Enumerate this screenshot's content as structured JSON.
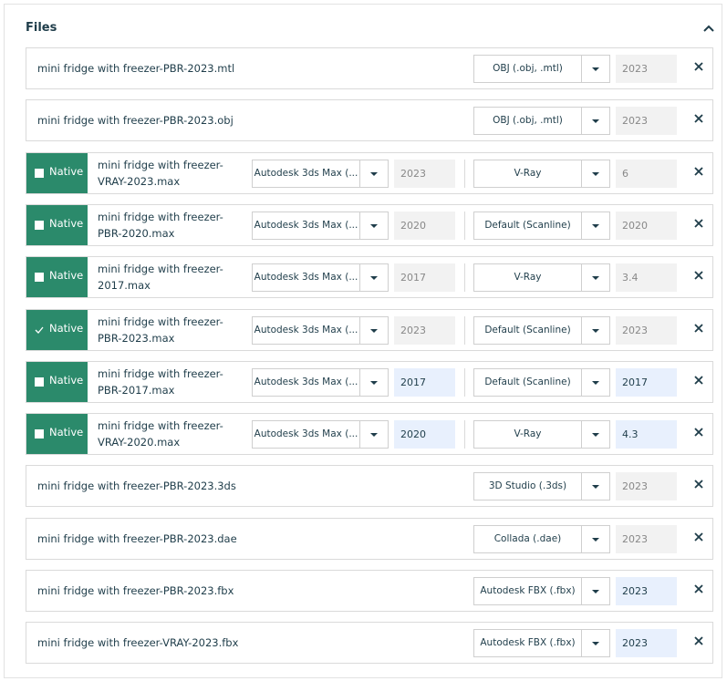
{
  "header": {
    "title": "Files"
  },
  "files": [
    {
      "name": "mini fridge with freezer-PBR-2023.mtl",
      "format": "OBJ (.obj, .mtl)",
      "version": "2023",
      "version_editable": false
    },
    {
      "name": "mini fridge with freezer-PBR-2023.obj",
      "format": "OBJ (.obj, .mtl)",
      "version": "2023",
      "version_editable": false
    },
    {
      "native": {
        "label": "Native",
        "checked": false
      },
      "name": "mini fridge with freezer-VRAY-2023.max",
      "software": "Autodesk 3ds Max (...",
      "software_version": "2023",
      "renderer": "V-Ray",
      "renderer_version": "6",
      "version_editable": false
    },
    {
      "native": {
        "label": "Native",
        "checked": false
      },
      "name": "mini fridge with freezer-PBR-2020.max",
      "software": "Autodesk 3ds Max (...",
      "software_version": "2020",
      "renderer": "Default (Scanline)",
      "renderer_version": "2020",
      "version_editable": false
    },
    {
      "native": {
        "label": "Native",
        "checked": false
      },
      "name": "mini fridge with freezer-2017.max",
      "software": "Autodesk 3ds Max (...",
      "software_version": "2017",
      "renderer": "V-Ray",
      "renderer_version": "3.4",
      "version_editable": false
    },
    {
      "native": {
        "label": "Native",
        "checked": true
      },
      "name": "mini fridge with freezer-PBR-2023.max",
      "software": "Autodesk 3ds Max (...",
      "software_version": "2023",
      "renderer": "Default (Scanline)",
      "renderer_version": "2023",
      "version_editable": false
    },
    {
      "native": {
        "label": "Native",
        "checked": false
      },
      "name": "mini fridge with freezer-PBR-2017.max",
      "software": "Autodesk 3ds Max (...",
      "software_version": "2017",
      "renderer": "Default (Scanline)",
      "renderer_version": "2017",
      "version_editable": true
    },
    {
      "native": {
        "label": "Native",
        "checked": false
      },
      "name": "mini fridge with freezer-VRAY-2020.max",
      "software": "Autodesk 3ds Max (...",
      "software_version": "2020",
      "renderer": "V-Ray",
      "renderer_version": "4.3",
      "version_editable": true
    },
    {
      "name": "mini fridge with freezer-PBR-2023.3ds",
      "format": "3D Studio (.3ds)",
      "version": "2023",
      "version_editable": false
    },
    {
      "name": "mini fridge with freezer-PBR-2023.dae",
      "format": "Collada (.dae)",
      "version": "2023",
      "version_editable": false
    },
    {
      "name": "mini fridge with freezer-PBR-2023.fbx",
      "format": "Autodesk FBX (.fbx)",
      "version": "2023",
      "version_editable": true
    },
    {
      "name": "mini fridge with freezer-VRAY-2023.fbx",
      "format": "Autodesk FBX (.fbx)",
      "version": "2023",
      "version_editable": true
    }
  ]
}
